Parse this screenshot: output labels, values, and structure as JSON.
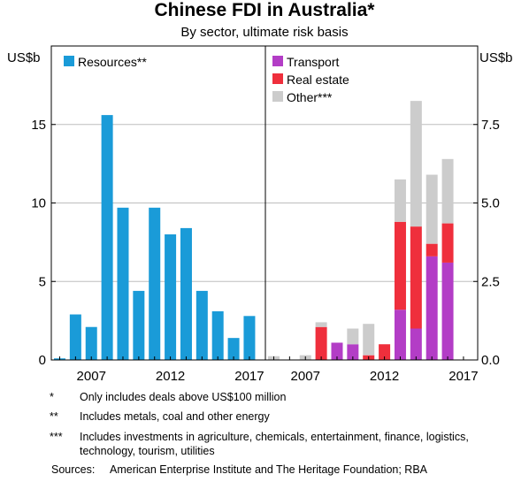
{
  "header": {
    "title": "Chinese FDI in Australia*",
    "subtitle": "By sector, ultimate risk basis"
  },
  "colors": {
    "resources": "#1a9bd8",
    "transport": "#b33dc6",
    "real_estate": "#ef2f3c",
    "other": "#cccccc"
  },
  "chart_data": [
    {
      "type": "bar",
      "panel": "left",
      "ylabel": "US$b",
      "ylim": [
        0,
        20
      ],
      "yticks": [
        0,
        5,
        10,
        15
      ],
      "x": [
        2005,
        2006,
        2007,
        2008,
        2009,
        2010,
        2011,
        2012,
        2013,
        2014,
        2015,
        2016,
        2017
      ],
      "xticks": [
        2007,
        2012,
        2017
      ],
      "series": [
        {
          "name": "Resources**",
          "values": [
            0.1,
            2.9,
            2.1,
            15.6,
            9.7,
            4.4,
            9.7,
            8.0,
            8.4,
            4.4,
            3.1,
            1.4,
            2.8
          ]
        }
      ],
      "legend": "top-left",
      "grid": true
    },
    {
      "type": "bar",
      "stacked": true,
      "panel": "right",
      "ylabel": "US$b",
      "ylim": [
        0,
        10
      ],
      "yticks": [
        0.0,
        2.5,
        5.0,
        7.5
      ],
      "yticklabels": [
        "0.0",
        "2.5",
        "5.0",
        "7.5"
      ],
      "x": [
        2005,
        2006,
        2007,
        2008,
        2009,
        2010,
        2011,
        2012,
        2013,
        2014,
        2015,
        2016,
        2017
      ],
      "xticks": [
        2007,
        2012,
        2017
      ],
      "series": [
        {
          "name": "Transport",
          "values": [
            0.0,
            0.0,
            0.0,
            0.0,
            0.55,
            0.5,
            0.0,
            0.0,
            1.6,
            1.0,
            3.3,
            3.1,
            0.0
          ]
        },
        {
          "name": "Real estate",
          "values": [
            0.0,
            0.0,
            0.0,
            1.05,
            0.0,
            0.0,
            0.15,
            0.5,
            2.8,
            3.25,
            0.4,
            1.25,
            0.0
          ]
        },
        {
          "name": "Other***",
          "values": [
            0.12,
            0.0,
            0.15,
            0.15,
            0.0,
            0.5,
            1.0,
            0.0,
            1.35,
            4.0,
            2.2,
            2.05,
            0.0
          ]
        }
      ],
      "legend": "top-left",
      "grid": true
    }
  ],
  "notes": [
    {
      "mark": "*",
      "text": "Only includes deals above US$100 million"
    },
    {
      "mark": "**",
      "text": "Includes metals, coal and other energy"
    },
    {
      "mark": "***",
      "text": "Includes investments in agriculture, chemicals, entertainment, finance, logistics, technology, tourism, utilities"
    }
  ],
  "sources": {
    "label": "Sources:",
    "text": "American Enterprise Institute and The Heritage Foundation; RBA"
  }
}
